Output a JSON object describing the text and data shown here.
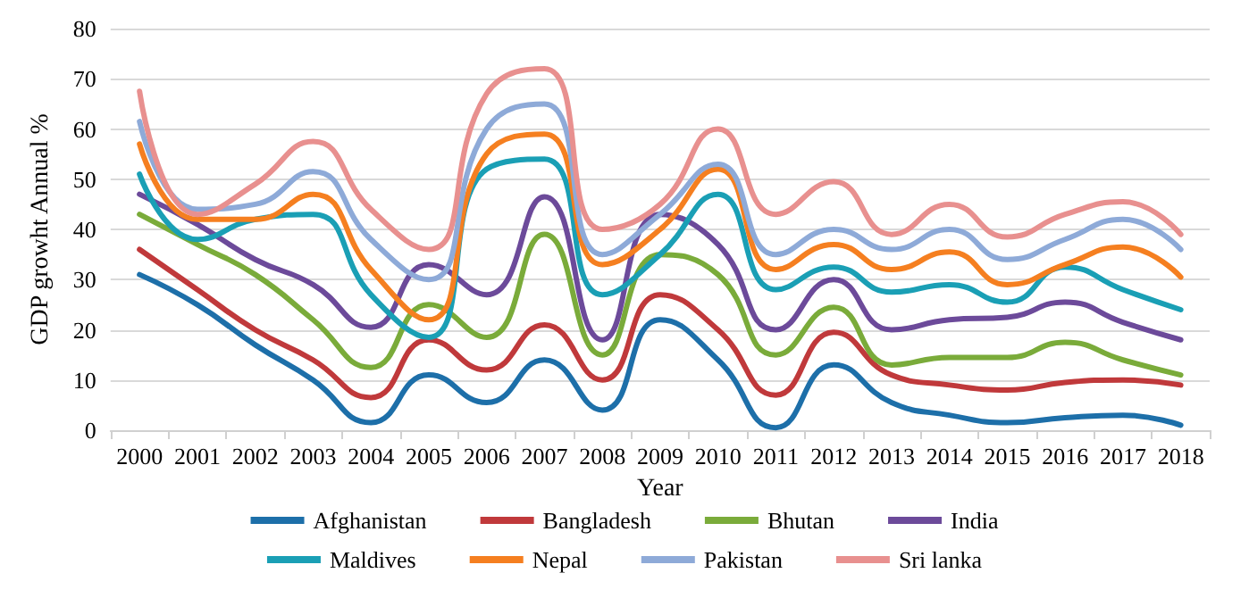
{
  "chart_data": {
    "type": "line",
    "xlabel": "Year",
    "ylabel": "GDP growht Annual %",
    "categories": [
      "2000",
      "2001",
      "2002",
      "2003",
      "2004",
      "2005",
      "2006",
      "2007",
      "2008",
      "2009",
      "2010",
      "2011",
      "2012",
      "2013",
      "2014",
      "2015",
      "2016",
      "2017",
      "2018"
    ],
    "series": [
      {
        "name": "Afghanistan",
        "color": "#1d6fa9",
        "values": [
          31,
          25,
          17,
          10,
          1.5,
          11,
          5.5,
          14,
          4,
          22,
          14,
          0.5,
          13,
          5.5,
          3,
          1.5,
          2.5,
          3,
          1
        ]
      },
      {
        "name": "Bangladesh",
        "color": "#c0393b",
        "values": [
          36,
          28,
          20,
          14,
          6.5,
          18,
          12,
          21,
          10,
          27,
          20,
          7,
          19.5,
          11,
          9,
          8,
          9.5,
          10,
          9
        ]
      },
      {
        "name": "Bhutan",
        "color": "#7aab3a",
        "values": [
          43,
          37,
          31,
          22,
          12.5,
          25,
          18.5,
          39,
          15,
          35,
          31,
          15,
          24.5,
          13,
          14.5,
          14.5,
          17.5,
          14,
          11
        ]
      },
      {
        "name": "India",
        "color": "#6c4a9a",
        "values": [
          47,
          41,
          34,
          29,
          20.5,
          33,
          27,
          46.5,
          18,
          43,
          37,
          20,
          30,
          20,
          22,
          22.5,
          25.5,
          21.5,
          18
        ]
      },
      {
        "name": "Maldives",
        "color": "#1a9fb5",
        "values": [
          51,
          38,
          42,
          43,
          27,
          18.5,
          52,
          54,
          27,
          35,
          47,
          28,
          32.5,
          27.5,
          29,
          25.5,
          32.5,
          28,
          24
        ]
      },
      {
        "name": "Nepal",
        "color": "#f57f20",
        "values": [
          57,
          42,
          42,
          47,
          32,
          22,
          55,
          59,
          33,
          40,
          52,
          32,
          37,
          32,
          35.5,
          29,
          33,
          36.5,
          30.5
        ]
      },
      {
        "name": "Pakistan",
        "color": "#8eaad8",
        "values": [
          61.5,
          44,
          45,
          51.5,
          38,
          30,
          60,
          65,
          35,
          43,
          53,
          35,
          40,
          36,
          40,
          34,
          38,
          42,
          36
        ]
      },
      {
        "name": "Sri lanka",
        "color": "#e8908f",
        "values": [
          67.5,
          43,
          49,
          57.5,
          44,
          36,
          67,
          72,
          40,
          45,
          60,
          43,
          49.5,
          39,
          45,
          38.5,
          43,
          45.5,
          39
        ]
      }
    ],
    "ylim": [
      0,
      80
    ],
    "yticks": [
      0,
      10,
      20,
      30,
      40,
      50,
      60,
      70,
      80
    ],
    "grid": "y",
    "legend": "bottom",
    "marker": "none",
    "line_style": "solid"
  }
}
